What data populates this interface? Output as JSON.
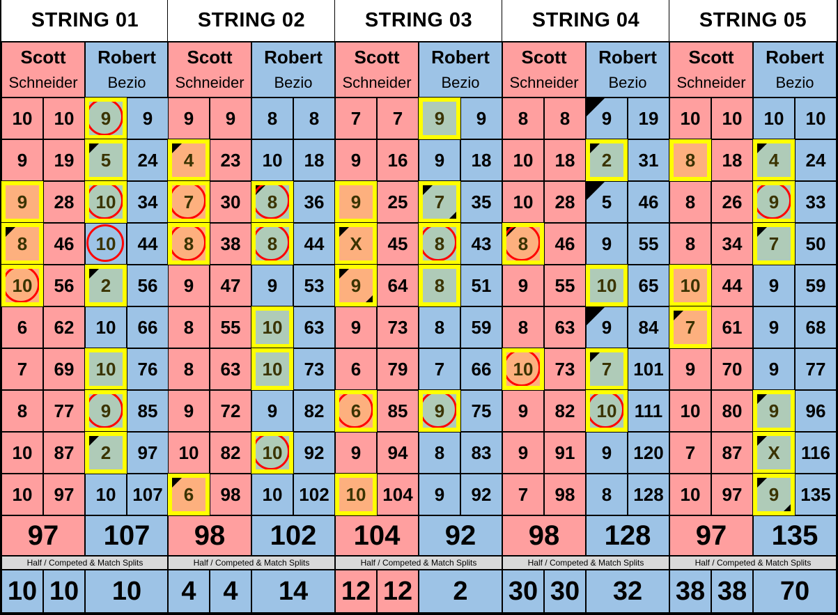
{
  "colors": {
    "scott": "#FF9F9F",
    "robert": "#9DC3E6",
    "highlight_border": "#FFFF00",
    "circle": "#FF0000",
    "scott_highlight": "#FDB07E",
    "robert_highlight": "#AFCBB8"
  },
  "players": {
    "scott": {
      "first": "Scott",
      "last": "Schneider"
    },
    "robert": {
      "first": "Robert",
      "last": "Bezio"
    }
  },
  "split_label": "Half / Competed & Match Splits",
  "strings": [
    {
      "title": "STRING 01",
      "rows": [
        {
          "s": {
            "v": "10"
          },
          "st": "10",
          "r": {
            "v": "9",
            "hl": true,
            "circle": true
          },
          "rt": "9"
        },
        {
          "s": {
            "v": "9"
          },
          "st": "19",
          "r": {
            "v": "5",
            "hl": true,
            "tl": true
          },
          "rt": "24"
        },
        {
          "s": {
            "v": "9",
            "hl": true
          },
          "st": "28",
          "r": {
            "v": "10",
            "hl": true,
            "circle": true
          },
          "rt": "34"
        },
        {
          "s": {
            "v": "8",
            "hl": true,
            "tl": true
          },
          "st": "46",
          "r": {
            "v": "10",
            "circle": true
          },
          "rt": "44"
        },
        {
          "s": {
            "v": "10",
            "hl": true,
            "circle": true
          },
          "st": "56",
          "r": {
            "v": "2",
            "hl": true,
            "tl": true
          },
          "rt": "56"
        },
        {
          "s": {
            "v": "6"
          },
          "st": "62",
          "r": {
            "v": "10"
          },
          "rt": "66"
        },
        {
          "s": {
            "v": "7"
          },
          "st": "69",
          "r": {
            "v": "10",
            "hl": true
          },
          "rt": "76"
        },
        {
          "s": {
            "v": "8"
          },
          "st": "77",
          "r": {
            "v": "9",
            "hl": true,
            "circle": true
          },
          "rt": "85"
        },
        {
          "s": {
            "v": "10"
          },
          "st": "87",
          "r": {
            "v": "2",
            "hl": true,
            "tl": true
          },
          "rt": "97"
        },
        {
          "s": {
            "v": "10"
          },
          "st": "97",
          "r": {
            "v": "10"
          },
          "rt": "107"
        }
      ],
      "totals": {
        "scott": "97",
        "robert": "107"
      },
      "splits": [
        {
          "v": "10",
          "side": "robert"
        },
        {
          "v": "10",
          "side": "robert"
        },
        {
          "v": "10",
          "side": "robert"
        }
      ]
    },
    {
      "title": "STRING 02",
      "rows": [
        {
          "s": {
            "v": "9"
          },
          "st": "9",
          "r": {
            "v": "8"
          },
          "rt": "8"
        },
        {
          "s": {
            "v": "4",
            "hl": true,
            "tl": true
          },
          "st": "23",
          "r": {
            "v": "10"
          },
          "rt": "18"
        },
        {
          "s": {
            "v": "7",
            "hl": true,
            "circle": true
          },
          "st": "30",
          "r": {
            "v": "8",
            "hl": true,
            "circle": true,
            "tl": true
          },
          "rt": "36"
        },
        {
          "s": {
            "v": "8",
            "hl": true,
            "circle": true
          },
          "st": "38",
          "r": {
            "v": "8",
            "hl": true,
            "circle": true
          },
          "rt": "44"
        },
        {
          "s": {
            "v": "9"
          },
          "st": "47",
          "r": {
            "v": "9"
          },
          "rt": "53"
        },
        {
          "s": {
            "v": "8"
          },
          "st": "55",
          "r": {
            "v": "10",
            "hl": true
          },
          "rt": "63"
        },
        {
          "s": {
            "v": "8"
          },
          "st": "63",
          "r": {
            "v": "10",
            "hl": true
          },
          "rt": "73"
        },
        {
          "s": {
            "v": "9"
          },
          "st": "72",
          "r": {
            "v": "9"
          },
          "rt": "82"
        },
        {
          "s": {
            "v": "10"
          },
          "st": "82",
          "r": {
            "v": "10",
            "hl": true,
            "circle": true
          },
          "rt": "92"
        },
        {
          "s": {
            "v": "6",
            "hl": true,
            "tl": true
          },
          "st": "98",
          "r": {
            "v": "10"
          },
          "rt": "102"
        }
      ],
      "totals": {
        "scott": "98",
        "robert": "102"
      },
      "splits": [
        {
          "v": "4",
          "side": "robert"
        },
        {
          "v": "4",
          "side": "robert"
        },
        {
          "v": "14",
          "side": "robert"
        }
      ]
    },
    {
      "title": "STRING 03",
      "rows": [
        {
          "s": {
            "v": "7"
          },
          "st": "7",
          "r": {
            "v": "9",
            "hl": true
          },
          "rt": "9"
        },
        {
          "s": {
            "v": "9"
          },
          "st": "16",
          "r": {
            "v": "9"
          },
          "rt": "18"
        },
        {
          "s": {
            "v": "9",
            "hl": true
          },
          "st": "25",
          "r": {
            "v": "7",
            "hl": true,
            "tl": true,
            "br": true
          },
          "rt": "35"
        },
        {
          "s": {
            "v": "X",
            "hl": true,
            "tl": true
          },
          "st": "45",
          "r": {
            "v": "8",
            "hl": true,
            "circle": true
          },
          "rt": "43"
        },
        {
          "s": {
            "v": "9",
            "hl": true,
            "tl": true,
            "br": true
          },
          "st": "64",
          "r": {
            "v": "8",
            "hl": true
          },
          "rt": "51"
        },
        {
          "s": {
            "v": "9"
          },
          "st": "73",
          "r": {
            "v": "8"
          },
          "rt": "59"
        },
        {
          "s": {
            "v": "6"
          },
          "st": "79",
          "r": {
            "v": "7"
          },
          "rt": "66"
        },
        {
          "s": {
            "v": "6",
            "hl": true,
            "circle": true
          },
          "st": "85",
          "r": {
            "v": "9",
            "hl": true,
            "circle": true
          },
          "rt": "75"
        },
        {
          "s": {
            "v": "9"
          },
          "st": "94",
          "r": {
            "v": "8"
          },
          "rt": "83"
        },
        {
          "s": {
            "v": "10",
            "hl": true
          },
          "st": "104",
          "r": {
            "v": "9"
          },
          "rt": "92"
        }
      ],
      "totals": {
        "scott": "104",
        "robert": "92"
      },
      "splits": [
        {
          "v": "12",
          "side": "scott"
        },
        {
          "v": "12",
          "side": "scott"
        },
        {
          "v": "2",
          "side": "robert"
        }
      ]
    },
    {
      "title": "STRING 04",
      "rows": [
        {
          "s": {
            "v": "8"
          },
          "st": "8",
          "r": {
            "v": "9",
            "tl": true
          },
          "rt": "19"
        },
        {
          "s": {
            "v": "10"
          },
          "st": "18",
          "r": {
            "v": "2",
            "hl": true,
            "tl": true
          },
          "rt": "31"
        },
        {
          "s": {
            "v": "10"
          },
          "st": "28",
          "r": {
            "v": "5",
            "tl": true
          },
          "rt": "46"
        },
        {
          "s": {
            "v": "8",
            "hl": true,
            "circle": true,
            "tl": true
          },
          "st": "46",
          "r": {
            "v": "9"
          },
          "rt": "55"
        },
        {
          "s": {
            "v": "9"
          },
          "st": "55",
          "r": {
            "v": "10",
            "hl": true
          },
          "rt": "65"
        },
        {
          "s": {
            "v": "8"
          },
          "st": "63",
          "r": {
            "v": "9",
            "tl": true
          },
          "rt": "84"
        },
        {
          "s": {
            "v": "10",
            "hl": true,
            "circle": true
          },
          "st": "73",
          "r": {
            "v": "7",
            "hl": true,
            "tl": true
          },
          "rt": "101"
        },
        {
          "s": {
            "v": "9"
          },
          "st": "82",
          "r": {
            "v": "10",
            "hl": true,
            "circle": true
          },
          "rt": "111"
        },
        {
          "s": {
            "v": "9"
          },
          "st": "91",
          "r": {
            "v": "9"
          },
          "rt": "120"
        },
        {
          "s": {
            "v": "7"
          },
          "st": "98",
          "r": {
            "v": "8"
          },
          "rt": "128"
        }
      ],
      "totals": {
        "scott": "98",
        "robert": "128"
      },
      "splits": [
        {
          "v": "30",
          "side": "robert"
        },
        {
          "v": "30",
          "side": "robert"
        },
        {
          "v": "32",
          "side": "robert"
        }
      ]
    },
    {
      "title": "STRING 05",
      "rows": [
        {
          "s": {
            "v": "10"
          },
          "st": "10",
          "r": {
            "v": "10"
          },
          "rt": "10"
        },
        {
          "s": {
            "v": "8",
            "hl": true
          },
          "st": "18",
          "r": {
            "v": "4",
            "hl": true,
            "tl": true
          },
          "rt": "24"
        },
        {
          "s": {
            "v": "8"
          },
          "st": "26",
          "r": {
            "v": "9",
            "hl": true,
            "circle": true
          },
          "rt": "33"
        },
        {
          "s": {
            "v": "8"
          },
          "st": "34",
          "r": {
            "v": "7",
            "hl": true,
            "tl": true
          },
          "rt": "50"
        },
        {
          "s": {
            "v": "10",
            "hl": true
          },
          "st": "44",
          "r": {
            "v": "9"
          },
          "rt": "59"
        },
        {
          "s": {
            "v": "7",
            "hl": true,
            "tl": true
          },
          "st": "61",
          "r": {
            "v": "9"
          },
          "rt": "68"
        },
        {
          "s": {
            "v": "9"
          },
          "st": "70",
          "r": {
            "v": "9"
          },
          "rt": "77"
        },
        {
          "s": {
            "v": "10"
          },
          "st": "80",
          "r": {
            "v": "9",
            "hl": true,
            "tl": true
          },
          "rt": "96"
        },
        {
          "s": {
            "v": "7"
          },
          "st": "87",
          "r": {
            "v": "X",
            "hl": true,
            "tl": true
          },
          "rt": "116"
        },
        {
          "s": {
            "v": "10"
          },
          "st": "97",
          "r": {
            "v": "9",
            "hl": true,
            "tl": true,
            "br": true
          },
          "rt": "135"
        }
      ],
      "totals": {
        "scott": "97",
        "robert": "135"
      },
      "splits": [
        {
          "v": "38",
          "side": "robert"
        },
        {
          "v": "38",
          "side": "robert"
        },
        {
          "v": "70",
          "side": "robert"
        }
      ]
    }
  ]
}
